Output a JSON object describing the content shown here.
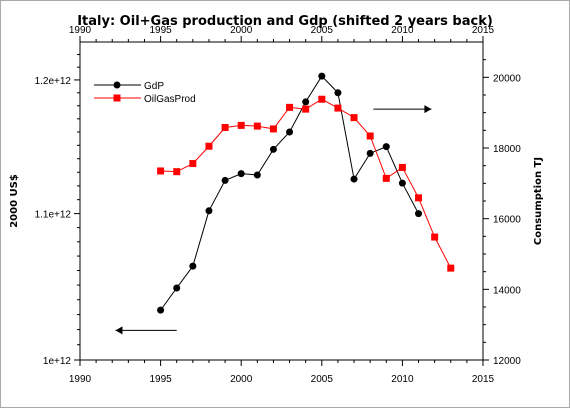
{
  "chart_data": {
    "type": "line",
    "title": "Italy: Oil+Gas production and Gdp (shifted 2 years back)",
    "x_ticks": [
      "1990",
      "1995",
      "2000",
      "2005",
      "2010",
      "2015"
    ],
    "xlim": [
      1990,
      2015
    ],
    "y_left": {
      "label": "2000 US$",
      "ticks": [
        "1e+12",
        "1.1e+12",
        "1.2e+12"
      ],
      "tick_values": [
        1000000000000.0,
        1100000000000.0,
        1200000000000.0
      ],
      "scale": "log",
      "ylim": [
        1000000000000.0,
        1230000000000.0
      ]
    },
    "y_right": {
      "label": "Consumption TJ",
      "ticks": [
        "12000",
        "14000",
        "16000",
        "18000",
        "20000"
      ],
      "tick_values": [
        12000,
        14000,
        16000,
        18000,
        20000
      ],
      "ylim": [
        12000,
        21000
      ]
    },
    "legend_position": "top-left",
    "series": [
      {
        "name": "GdP",
        "axis": "left",
        "color": "#000000",
        "marker": "circle",
        "x": [
          1995,
          1996,
          1997,
          1998,
          1999,
          2000,
          2001,
          2002,
          2003,
          2004,
          2005,
          2006,
          2007,
          2008,
          2009,
          2010,
          2011
        ],
        "values": [
          1033000000000.0,
          1048000000000.0,
          1063000000000.0,
          1102000000000.0,
          1124000000000.0,
          1129000000000.0,
          1128000000000.0,
          1147000000000.0,
          1160000000000.0,
          1183000000000.0,
          1203000000000.0,
          1190000000000.0,
          1125000000000.0,
          1144000000000.0,
          1149000000000.0,
          1122000000000.0,
          1100000000000.0
        ]
      },
      {
        "name": "OilGasProd",
        "axis": "right",
        "color": "#ff0000",
        "marker": "square",
        "x": [
          1995,
          1996,
          1997,
          1998,
          1999,
          2000,
          2001,
          2002,
          2003,
          2004,
          2005,
          2006,
          2007,
          2008,
          2009,
          2010,
          2011,
          2012,
          2013
        ],
        "values": [
          17350,
          17330,
          17560,
          18050,
          18580,
          18640,
          18620,
          18540,
          19150,
          19100,
          19380,
          19130,
          18860,
          18340,
          17140,
          17450,
          16590,
          15480,
          14600
        ]
      }
    ],
    "annotations": [
      {
        "type": "arrow",
        "direction": "right",
        "from": [
          2008.2,
          19100
        ],
        "to": [
          2011.8,
          19100
        ]
      },
      {
        "type": "arrow",
        "direction": "left",
        "from": [
          1996,
          12840
        ],
        "to": [
          1992.2,
          12840
        ]
      }
    ]
  }
}
